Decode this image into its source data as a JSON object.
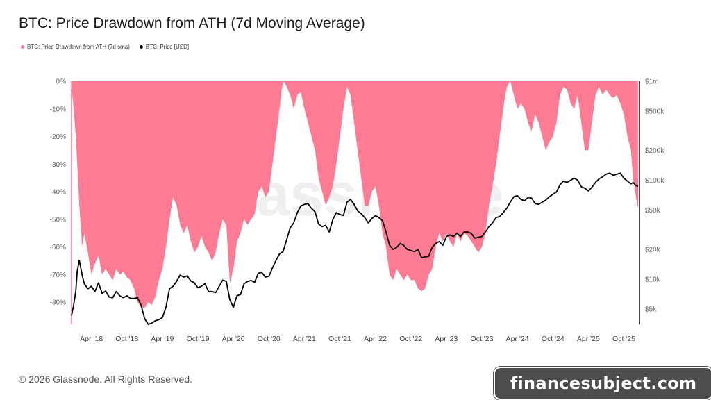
{
  "title": "BTC: Price Drawdown from ATH (7d Moving Average)",
  "legend": [
    {
      "label": "BTC: Price Drawdown from ATH (7d sma)",
      "color": "#ff7a93"
    },
    {
      "label": "BTC: Price [USD]",
      "color": "#000000"
    }
  ],
  "watermark": "glassnode",
  "footer": "© 2026 Glassnode. All Rights Reserved.",
  "footer_logo": "glassnode",
  "overlay_badge": "financesubject.com",
  "chart_data": {
    "type": "area",
    "x_ticks": [
      "Apr '18",
      "Oct '18",
      "Apr '19",
      "Oct '19",
      "Apr '20",
      "Oct '20",
      "Apr '21",
      "Oct '21",
      "Apr '22",
      "Oct '22",
      "Apr '23",
      "Oct '23",
      "Apr '24",
      "Oct '24",
      "Apr '25",
      "Oct '25"
    ],
    "left_axis": {
      "ticks": [
        "0%",
        "-10%",
        "-20%",
        "-30%",
        "-40%",
        "-50%",
        "-60%",
        "-70%",
        "-80%"
      ],
      "range": [
        -0.88,
        0
      ]
    },
    "right_axis": {
      "scale": "log",
      "ticks": [
        "$1m",
        "$500k",
        "$200k",
        "$100k",
        "$50k",
        "$20k",
        "$10k",
        "$5k"
      ],
      "range": [
        3500,
        1000000
      ]
    },
    "series": [
      {
        "name": "BTC: Price Drawdown from ATH (7d sma)",
        "color": "#ff7a93",
        "x": [
          2017.97,
          2018.0,
          2018.03,
          2018.05,
          2018.08,
          2018.12,
          2018.15,
          2018.2,
          2018.25,
          2018.3,
          2018.35,
          2018.4,
          2018.45,
          2018.5,
          2018.55,
          2018.6,
          2018.65,
          2018.7,
          2018.75,
          2018.8,
          2018.85,
          2018.9,
          2018.95,
          2019.0,
          2019.05,
          2019.1,
          2019.15,
          2019.2,
          2019.25,
          2019.3,
          2019.35,
          2019.4,
          2019.45,
          2019.5,
          2019.55,
          2019.6,
          2019.65,
          2019.7,
          2019.75,
          2019.8,
          2019.85,
          2019.9,
          2019.95,
          2020.0,
          2020.05,
          2020.1,
          2020.15,
          2020.2,
          2020.25,
          2020.3,
          2020.35,
          2020.4,
          2020.45,
          2020.5,
          2020.55,
          2020.6,
          2020.65,
          2020.7,
          2020.75,
          2020.8,
          2020.85,
          2020.9,
          2020.93,
          2020.96,
          2021.0,
          2021.05,
          2021.1,
          2021.15,
          2021.2,
          2021.25,
          2021.3,
          2021.35,
          2021.4,
          2021.45,
          2021.5,
          2021.55,
          2021.6,
          2021.65,
          2021.7,
          2021.75,
          2021.8,
          2021.85,
          2021.9,
          2021.95,
          2022.0,
          2022.05,
          2022.1,
          2022.15,
          2022.2,
          2022.25,
          2022.3,
          2022.35,
          2022.4,
          2022.45,
          2022.5,
          2022.55,
          2022.6,
          2022.65,
          2022.7,
          2022.75,
          2022.8,
          2022.85,
          2022.9,
          2022.95,
          2023.0,
          2023.05,
          2023.1,
          2023.15,
          2023.2,
          2023.25,
          2023.3,
          2023.35,
          2023.4,
          2023.45,
          2023.5,
          2023.55,
          2023.6,
          2023.65,
          2023.7,
          2023.75,
          2023.8,
          2023.85,
          2023.9,
          2023.95,
          2024.0,
          2024.05,
          2024.1,
          2024.15,
          2024.2,
          2024.25,
          2024.3,
          2024.35,
          2024.4,
          2024.45,
          2024.5,
          2024.55,
          2024.6,
          2024.65,
          2024.7,
          2024.75,
          2024.8,
          2024.85,
          2024.9,
          2024.95,
          2025.0,
          2025.05,
          2025.1,
          2025.15,
          2025.2,
          2025.25,
          2025.3,
          2025.35,
          2025.4,
          2025.45,
          2025.5,
          2025.55,
          2025.6,
          2025.65,
          2025.7,
          2025.75,
          2025.8,
          2025.85,
          2025.88,
          2025.92,
          2025.95
        ],
        "values": [
          -0.02,
          -0.1,
          -0.2,
          -0.3,
          -0.45,
          -0.6,
          -0.55,
          -0.62,
          -0.7,
          -0.66,
          -0.63,
          -0.7,
          -0.68,
          -0.7,
          -0.72,
          -0.68,
          -0.7,
          -0.69,
          -0.71,
          -0.72,
          -0.75,
          -0.8,
          -0.82,
          -0.82,
          -0.8,
          -0.81,
          -0.78,
          -0.72,
          -0.68,
          -0.6,
          -0.5,
          -0.42,
          -0.45,
          -0.52,
          -0.55,
          -0.52,
          -0.58,
          -0.62,
          -0.6,
          -0.56,
          -0.6,
          -0.62,
          -0.65,
          -0.62,
          -0.55,
          -0.5,
          -0.52,
          -0.73,
          -0.68,
          -0.58,
          -0.55,
          -0.5,
          -0.52,
          -0.5,
          -0.48,
          -0.4,
          -0.38,
          -0.42,
          -0.4,
          -0.3,
          -0.2,
          -0.1,
          -0.03,
          0,
          -0.02,
          -0.05,
          -0.1,
          -0.05,
          -0.04,
          -0.1,
          -0.15,
          -0.2,
          -0.25,
          -0.35,
          -0.4,
          -0.45,
          -0.42,
          -0.38,
          -0.3,
          -0.2,
          -0.1,
          -0.02,
          -0.05,
          -0.15,
          -0.25,
          -0.35,
          -0.45,
          -0.45,
          -0.4,
          -0.38,
          -0.45,
          -0.55,
          -0.6,
          -0.7,
          -0.72,
          -0.68,
          -0.7,
          -0.72,
          -0.7,
          -0.72,
          -0.72,
          -0.75,
          -0.76,
          -0.75,
          -0.7,
          -0.68,
          -0.6,
          -0.55,
          -0.58,
          -0.55,
          -0.58,
          -0.6,
          -0.55,
          -0.58,
          -0.55,
          -0.56,
          -0.58,
          -0.6,
          -0.62,
          -0.6,
          -0.55,
          -0.45,
          -0.38,
          -0.3,
          -0.2,
          -0.1,
          -0.02,
          0,
          -0.05,
          -0.1,
          -0.08,
          -0.1,
          -0.15,
          -0.18,
          -0.12,
          -0.15,
          -0.2,
          -0.25,
          -0.22,
          -0.2,
          -0.15,
          -0.05,
          -0.02,
          -0.03,
          -0.08,
          -0.1,
          -0.05,
          -0.15,
          -0.25,
          -0.25,
          -0.15,
          -0.05,
          -0.02,
          -0.05,
          -0.03,
          -0.05,
          -0.06,
          -0.05,
          -0.08,
          -0.12,
          -0.2,
          -0.25,
          -0.35,
          -0.42,
          -0.46
        ]
      },
      {
        "name": "BTC: Price [USD]",
        "color": "#000000",
        "x": [
          2017.97,
          2018.0,
          2018.03,
          2018.05,
          2018.08,
          2018.12,
          2018.15,
          2018.2,
          2018.25,
          2018.3,
          2018.35,
          2018.4,
          2018.45,
          2018.5,
          2018.55,
          2018.6,
          2018.65,
          2018.7,
          2018.75,
          2018.8,
          2018.85,
          2018.9,
          2018.95,
          2019.0,
          2019.05,
          2019.1,
          2019.15,
          2019.2,
          2019.25,
          2019.3,
          2019.35,
          2019.4,
          2019.45,
          2019.5,
          2019.55,
          2019.6,
          2019.65,
          2019.7,
          2019.75,
          2019.8,
          2019.85,
          2019.9,
          2019.95,
          2020.0,
          2020.05,
          2020.1,
          2020.15,
          2020.2,
          2020.25,
          2020.3,
          2020.35,
          2020.4,
          2020.45,
          2020.5,
          2020.55,
          2020.6,
          2020.65,
          2020.7,
          2020.75,
          2020.8,
          2020.85,
          2020.9,
          2020.95,
          2021.0,
          2021.05,
          2021.1,
          2021.15,
          2021.2,
          2021.25,
          2021.3,
          2021.35,
          2021.4,
          2021.45,
          2021.5,
          2021.55,
          2021.6,
          2021.65,
          2021.7,
          2021.75,
          2021.8,
          2021.85,
          2021.9,
          2021.95,
          2022.0,
          2022.05,
          2022.1,
          2022.15,
          2022.2,
          2022.25,
          2022.3,
          2022.35,
          2022.4,
          2022.45,
          2022.5,
          2022.55,
          2022.6,
          2022.65,
          2022.7,
          2022.75,
          2022.8,
          2022.85,
          2022.9,
          2022.95,
          2023.0,
          2023.05,
          2023.1,
          2023.15,
          2023.2,
          2023.25,
          2023.3,
          2023.35,
          2023.4,
          2023.45,
          2023.5,
          2023.55,
          2023.6,
          2023.65,
          2023.7,
          2023.75,
          2023.8,
          2023.85,
          2023.9,
          2023.95,
          2024.0,
          2024.05,
          2024.1,
          2024.15,
          2024.2,
          2024.25,
          2024.3,
          2024.35,
          2024.4,
          2024.45,
          2024.5,
          2024.55,
          2024.6,
          2024.65,
          2024.7,
          2024.75,
          2024.8,
          2024.85,
          2024.9,
          2024.95,
          2025.0,
          2025.05,
          2025.1,
          2025.15,
          2025.2,
          2025.25,
          2025.3,
          2025.35,
          2025.4,
          2025.45,
          2025.5,
          2025.55,
          2025.6,
          2025.65,
          2025.7,
          2025.75,
          2025.8,
          2025.85,
          2025.88,
          2025.92,
          2025.95
        ],
        "values": [
          4300,
          5500,
          7500,
          12000,
          15500,
          11000,
          9000,
          8000,
          8500,
          7500,
          9200,
          7200,
          7600,
          6600,
          6500,
          7500,
          6800,
          6500,
          6800,
          6400,
          6400,
          6500,
          5500,
          4000,
          3500,
          3600,
          3800,
          3900,
          4100,
          5200,
          8000,
          8500,
          9500,
          11000,
          10500,
          10800,
          9600,
          9200,
          8200,
          8500,
          9000,
          7500,
          7500,
          7300,
          8500,
          9800,
          9500,
          6200,
          5200,
          6800,
          7000,
          9000,
          9500,
          9700,
          9300,
          11500,
          11700,
          10500,
          10700,
          13000,
          15500,
          18000,
          19000,
          25000,
          33000,
          37000,
          47000,
          55000,
          57000,
          58000,
          52000,
          48000,
          36000,
          34000,
          35000,
          30000,
          40000,
          47000,
          45000,
          44000,
          60000,
          64000,
          57000,
          49000,
          46000,
          42000,
          37000,
          41000,
          44000,
          42000,
          39000,
          30000,
          22000,
          20000,
          21000,
          23000,
          22000,
          20000,
          19500,
          19000,
          20000,
          16500,
          16800,
          17000,
          21000,
          23000,
          24000,
          22000,
          27000,
          28000,
          27000,
          29000,
          27000,
          30000,
          30000,
          29000,
          26000,
          26500,
          27000,
          30000,
          34000,
          37000,
          42000,
          43000,
          47000,
          52000,
          60000,
          68000,
          70000,
          64000,
          62000,
          67000,
          66000,
          58000,
          57000,
          60000,
          63000,
          68000,
          72000,
          76000,
          90000,
          98000,
          95000,
          100000,
          105000,
          100000,
          86000,
          83000,
          78000,
          85000,
          95000,
          103000,
          108000,
          115000,
          118000,
          112000,
          115000,
          118000,
          105000,
          98000,
          92000,
          95000,
          88000,
          87000
        ]
      }
    ],
    "grid": true,
    "legend_position": "top-left"
  }
}
